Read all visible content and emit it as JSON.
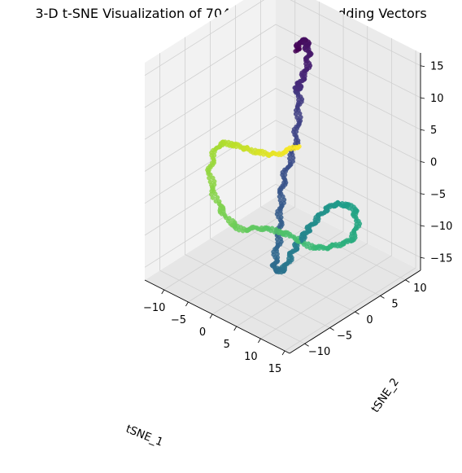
{
  "chart_data": {
    "type": "scatter",
    "title": "3-D t-SNE Visualization of 704 Integers ’ Embedding Vectors",
    "xlabel": "tSNE_1",
    "ylabel": "tSNE_2",
    "zlabel": "",
    "x_ticks": [
      "−10",
      "−5",
      "0",
      "5",
      "10",
      "15"
    ],
    "y_ticks": [
      "−10",
      "−5",
      "0",
      "5",
      "10"
    ],
    "z_ticks": [
      "−15",
      "−10",
      "−5",
      "0",
      "5",
      "10",
      "15"
    ],
    "xlim": [
      -14,
      16
    ],
    "ylim": [
      -13,
      13
    ],
    "zlim": [
      -17,
      17
    ],
    "grid": true,
    "colormap": "viridis",
    "point_count": 704,
    "points": [
      [
        -3.5,
        7.0,
        13.0,
        0.02
      ],
      [
        -2.5,
        7.5,
        14.5,
        0.05
      ],
      [
        -1.0,
        7.0,
        13.5,
        0.08
      ],
      [
        -0.5,
        6.0,
        11.0,
        0.11
      ],
      [
        -1.5,
        5.5,
        8.5,
        0.14
      ],
      [
        -2.5,
        6.5,
        7.0,
        0.17
      ],
      [
        -1.0,
        5.0,
        4.0,
        0.21
      ],
      [
        -0.5,
        3.5,
        0.0,
        0.25
      ],
      [
        -1.0,
        2.0,
        -4.0,
        0.29
      ],
      [
        -0.5,
        1.0,
        -8.0,
        0.33
      ],
      [
        0.0,
        0.0,
        -12.0,
        0.36
      ],
      [
        0.5,
        -1.0,
        -15.0,
        0.39
      ],
      [
        1.5,
        -0.5,
        -15.5,
        0.42
      ],
      [
        2.5,
        0.5,
        -13.0,
        0.45
      ],
      [
        4.0,
        1.0,
        -10.5,
        0.48
      ],
      [
        6.5,
        0.5,
        -7.5,
        0.51
      ],
      [
        9.5,
        0.5,
        -4.0,
        0.54
      ],
      [
        12.0,
        1.0,
        -2.5,
        0.57
      ],
      [
        14.0,
        2.0,
        -3.5,
        0.6
      ],
      [
        13.0,
        2.5,
        -8.0,
        0.63
      ],
      [
        10.0,
        2.0,
        -10.0,
        0.66
      ],
      [
        6.0,
        1.5,
        -11.5,
        0.69
      ],
      [
        2.0,
        0.5,
        -10.5,
        0.72
      ],
      [
        -2.0,
        -1.0,
        -10.0,
        0.75
      ],
      [
        -6.0,
        -2.0,
        -11.0,
        0.78
      ],
      [
        -10.0,
        -2.0,
        -9.0,
        0.81
      ],
      [
        -12.5,
        -1.5,
        -5.0,
        0.84
      ],
      [
        -11.5,
        -0.5,
        -1.0,
        0.87
      ],
      [
        -8.0,
        -0.5,
        0.0,
        0.9
      ],
      [
        -4.0,
        -0.5,
        0.5,
        0.93
      ],
      [
        0.0,
        -0.5,
        1.5,
        0.96
      ],
      [
        3.5,
        0.5,
        3.5,
        0.99
      ]
    ]
  }
}
